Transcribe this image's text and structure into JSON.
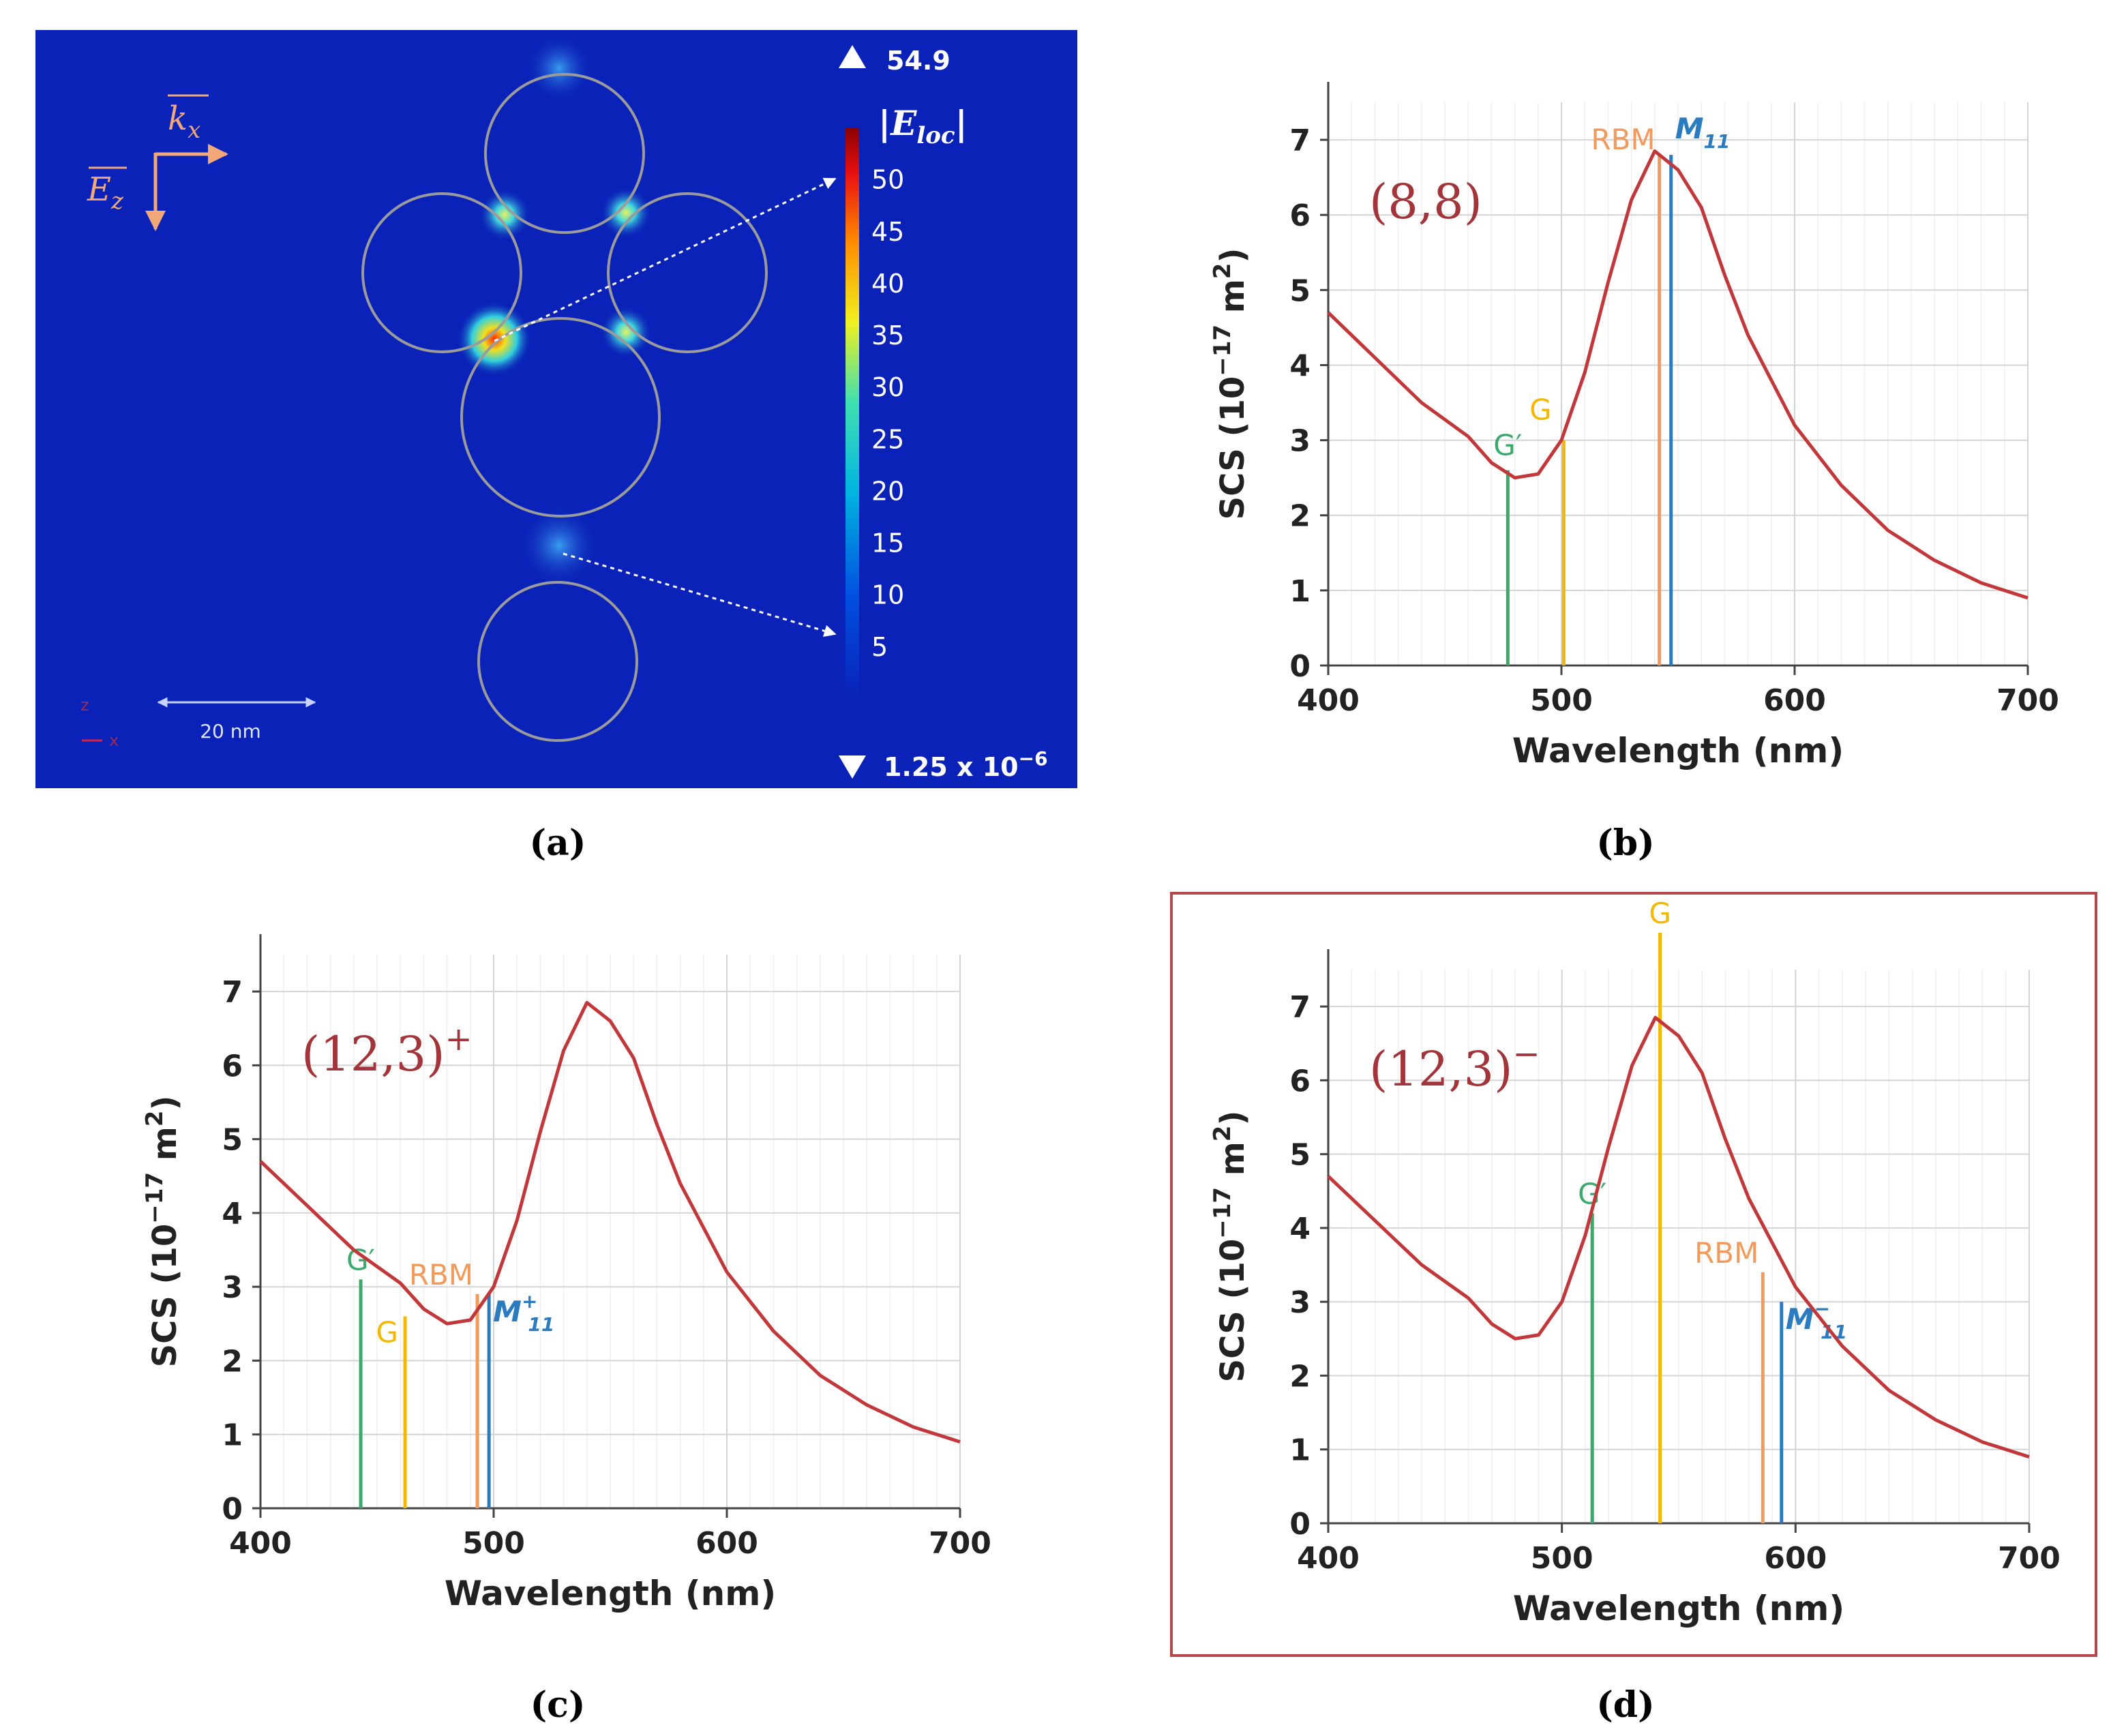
{
  "panel_labels": [
    "(a)",
    "(b)",
    "(c)",
    "(d)"
  ],
  "field_map": {
    "colorbar": {
      "max_label": "54.9",
      "min_label": "1.25 x 10",
      "min_exponent": "−6",
      "quantity_label": "|E",
      "quantity_sub": "loc",
      "quantity_close": "|",
      "ticks": [
        "50",
        "45",
        "40",
        "35",
        "30",
        "25",
        "20",
        "15",
        "10",
        "5"
      ],
      "range": [
        1.25e-06,
        54.9
      ]
    },
    "k_label": "k",
    "k_sub": "x",
    "e_label": "E",
    "e_sub": "z",
    "scale_label": "20 nm",
    "axis_tag_z": "z",
    "axis_tag_x": "x",
    "colors": {
      "background": "#0a22b8",
      "circle": "#9b9b9b",
      "hot": "#ff2a00"
    }
  },
  "chart_data": [
    {
      "panel": "(b)",
      "type": "line",
      "inset_label": "(8,8)",
      "inset_sup": "",
      "xlabel": "Wavelength (nm)",
      "ylabel": "SCS (10",
      "ylabel_exp": "−17",
      "ylabel_tail": " m",
      "ylabel_sq": "2",
      "ylabel_end": ")",
      "xticks": [
        "400",
        "500",
        "600",
        "700"
      ],
      "yticks": [
        "0",
        "1",
        "2",
        "3",
        "4",
        "5",
        "6",
        "7"
      ],
      "xlim": [
        400,
        700
      ],
      "ylim": [
        0,
        7.5
      ],
      "series": [
        {
          "color": "#c2373a",
          "x": [
            400,
            420,
            440,
            460,
            470,
            480,
            490,
            500,
            510,
            520,
            530,
            540,
            550,
            560,
            570,
            580,
            600,
            620,
            640,
            660,
            680,
            700
          ],
          "y": [
            4.7,
            4.1,
            3.5,
            3.05,
            2.7,
            2.5,
            2.55,
            3.0,
            3.9,
            5.1,
            6.2,
            6.85,
            6.6,
            6.1,
            5.2,
            4.4,
            3.2,
            2.4,
            1.8,
            1.4,
            1.1,
            0.9
          ]
        }
      ],
      "markers": [
        {
          "label": "G′",
          "sub": "",
          "sup": "",
          "x": 477,
          "y": 2.6,
          "color": "#3aaa6c"
        },
        {
          "label": "G",
          "sub": "",
          "sup": "",
          "x": 501,
          "y": 3.0,
          "color": "#f5b800"
        },
        {
          "label": "RBM",
          "sub": "",
          "sup": "",
          "x": 542,
          "y": 6.8,
          "color": "#f29a5c"
        },
        {
          "label": "M",
          "sub": "11",
          "sup": "",
          "x": 547,
          "y": 6.8,
          "color": "#2a7bbf"
        }
      ]
    },
    {
      "panel": "(c)",
      "type": "line",
      "inset_label": "(12,3)",
      "inset_sup": "+",
      "xlabel": "Wavelength (nm)",
      "ylabel": "SCS (10",
      "ylabel_exp": "−17",
      "ylabel_tail": " m",
      "ylabel_sq": "2",
      "ylabel_end": ")",
      "xticks": [
        "400",
        "500",
        "600",
        "700"
      ],
      "yticks": [
        "0",
        "1",
        "2",
        "3",
        "4",
        "5",
        "6",
        "7"
      ],
      "xlim": [
        400,
        700
      ],
      "ylim": [
        0,
        7.5
      ],
      "series": [
        {
          "color": "#c2373a",
          "x": [
            400,
            420,
            440,
            460,
            470,
            480,
            490,
            500,
            510,
            520,
            530,
            540,
            550,
            560,
            570,
            580,
            600,
            620,
            640,
            660,
            680,
            700
          ],
          "y": [
            4.7,
            4.1,
            3.5,
            3.05,
            2.7,
            2.5,
            2.55,
            3.0,
            3.9,
            5.1,
            6.2,
            6.85,
            6.6,
            6.1,
            5.2,
            4.4,
            3.2,
            2.4,
            1.8,
            1.4,
            1.1,
            0.9
          ]
        }
      ],
      "markers": [
        {
          "label": "G′",
          "sub": "",
          "sup": "",
          "x": 443,
          "y": 3.1,
          "color": "#3aaa6c"
        },
        {
          "label": "G",
          "sub": "",
          "sup": "",
          "x": 462,
          "y": 2.6,
          "color": "#f5b800"
        },
        {
          "label": "RBM",
          "sub": "",
          "sup": "",
          "x": 493,
          "y": 2.9,
          "color": "#f29a5c"
        },
        {
          "label": "M",
          "sub": "11",
          "sup": "+",
          "x": 498,
          "y": 2.9,
          "color": "#2a7bbf"
        }
      ]
    },
    {
      "panel": "(d)",
      "type": "line",
      "inset_label": "(12,3)",
      "inset_sup": "−",
      "xlabel": "Wavelength (nm)",
      "ylabel": "SCS (10",
      "ylabel_exp": "−17",
      "ylabel_tail": " m",
      "ylabel_sq": "2",
      "ylabel_end": ")",
      "xticks": [
        "400",
        "500",
        "600",
        "700"
      ],
      "yticks": [
        "0",
        "1",
        "2",
        "3",
        "4",
        "5",
        "6",
        "7"
      ],
      "xlim": [
        400,
        700
      ],
      "ylim": [
        0,
        7.5
      ],
      "series": [
        {
          "color": "#c2373a",
          "x": [
            400,
            420,
            440,
            460,
            470,
            480,
            490,
            500,
            510,
            520,
            530,
            540,
            550,
            560,
            570,
            580,
            600,
            620,
            640,
            660,
            680,
            700
          ],
          "y": [
            4.7,
            4.1,
            3.5,
            3.05,
            2.7,
            2.5,
            2.55,
            3.0,
            3.9,
            5.1,
            6.2,
            6.85,
            6.6,
            6.1,
            5.2,
            4.4,
            3.2,
            2.4,
            1.8,
            1.4,
            1.1,
            0.9
          ]
        }
      ],
      "markers": [
        {
          "label": "G′",
          "sub": "",
          "sup": "",
          "x": 513,
          "y": 4.2,
          "color": "#3aaa6c"
        },
        {
          "label": "G",
          "sub": "",
          "sup": "",
          "x": 542,
          "y": 8.0,
          "color": "#f5b800"
        },
        {
          "label": "RBM",
          "sub": "",
          "sup": "",
          "x": 586,
          "y": 3.4,
          "color": "#f29a5c"
        },
        {
          "label": "M",
          "sub": "11",
          "sup": "−",
          "x": 594,
          "y": 3.0,
          "color": "#2a7bbf"
        }
      ],
      "highlighted": true
    }
  ]
}
